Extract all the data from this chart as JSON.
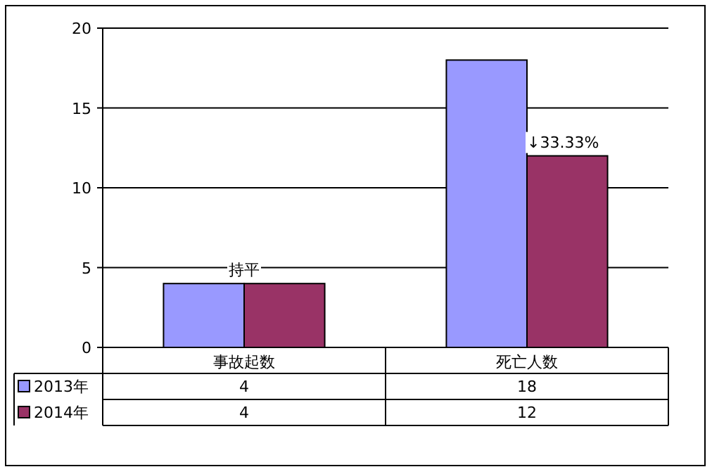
{
  "chart_data": {
    "type": "bar",
    "categories": [
      "事故起数",
      "死亡人数"
    ],
    "series": [
      {
        "name": "2013年",
        "color": "#9999ff",
        "values": [
          4,
          18
        ]
      },
      {
        "name": "2014年",
        "color": "#993366",
        "values": [
          4,
          12
        ]
      }
    ],
    "ylim": [
      0,
      20
    ],
    "yticks": [
      0,
      5,
      10,
      15,
      20
    ],
    "grid": "y",
    "legend": "bottom",
    "data_labels": true,
    "annotations": [
      {
        "text": "持平",
        "x": "事故起数",
        "y": 4
      },
      {
        "text": "↓33.33%",
        "x": "死亡人数",
        "y": 12
      }
    ]
  }
}
